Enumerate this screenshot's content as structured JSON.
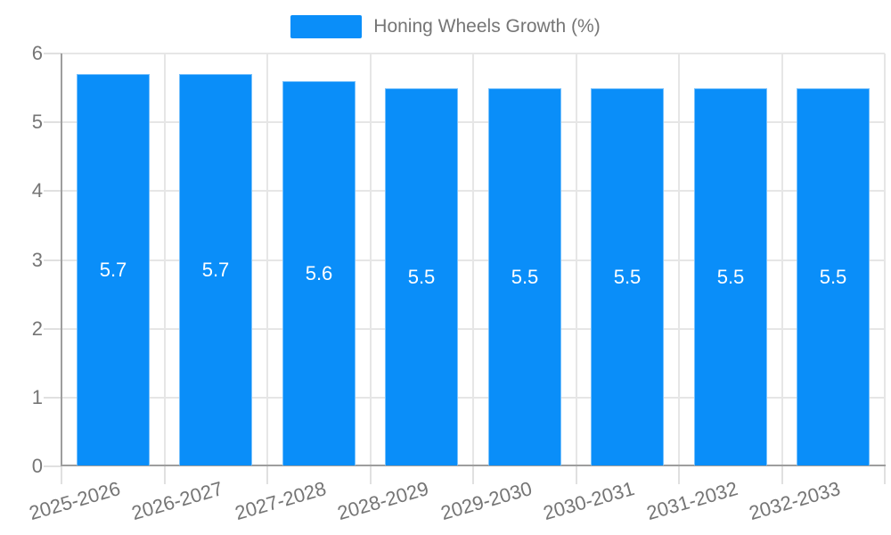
{
  "chart_data": {
    "type": "bar",
    "title": "",
    "series_name": "Honing Wheels Growth (%)",
    "categories": [
      "2025-2026",
      "2026-2027",
      "2027-2028",
      "2028-2029",
      "2029-2030",
      "2030-2031",
      "2031-2032",
      "2032-2033"
    ],
    "values": [
      5.7,
      5.7,
      5.6,
      5.5,
      5.5,
      5.5,
      5.5,
      5.5
    ],
    "value_labels": [
      "5.7",
      "5.7",
      "5.6",
      "5.5",
      "5.5",
      "5.5",
      "5.5",
      "5.5"
    ],
    "xlabel": "",
    "ylabel": "",
    "ylim": [
      0,
      6
    ],
    "ytick_labels": [
      "0",
      "1",
      "2",
      "3",
      "4",
      "5",
      "6"
    ],
    "grid": true,
    "legend_position": "top-center",
    "colors": {
      "bar": "#0a8ef9",
      "gridline": "#e6e6e6",
      "tick": "#e0e0e0",
      "axis_line": "#9e9e9e",
      "axis_text": "#757575",
      "legend_text": "#757575",
      "value_label": "#ffffff"
    }
  }
}
